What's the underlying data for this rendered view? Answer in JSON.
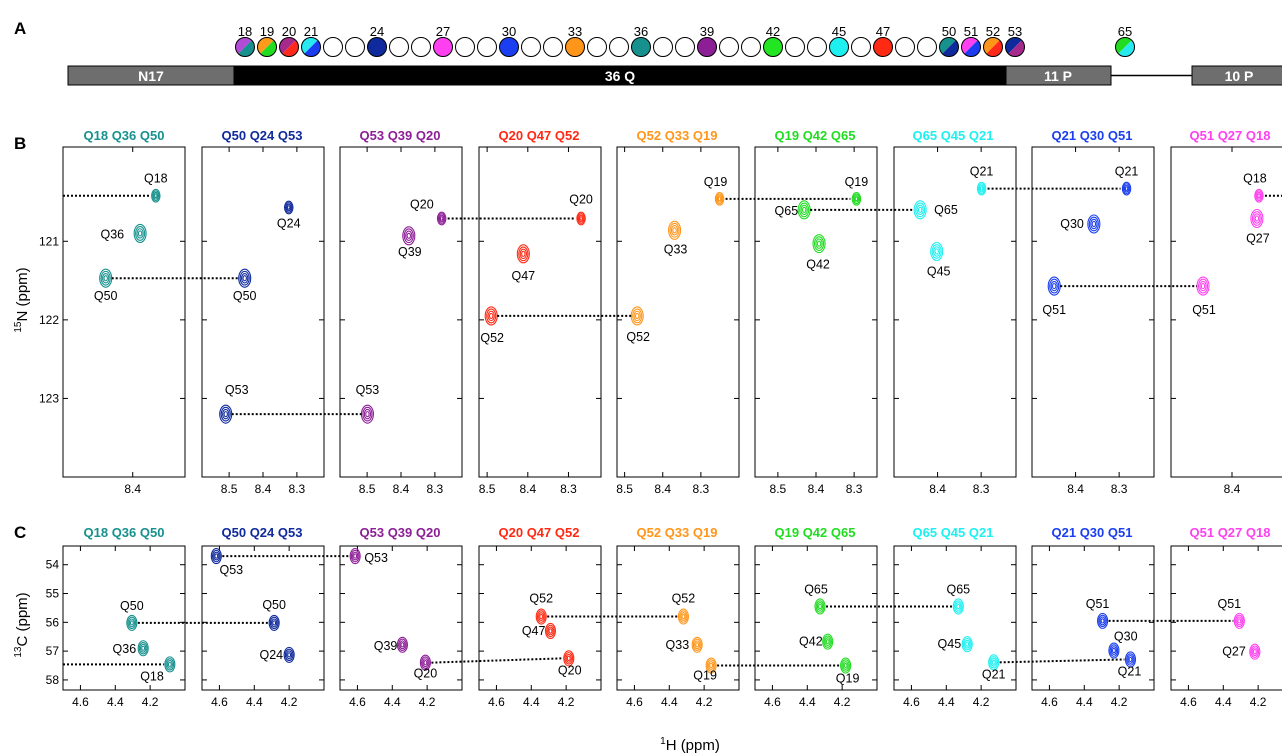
{
  "panel_letters": {
    "a": "A",
    "b": "B",
    "c": "C"
  },
  "schematic": {
    "segments": [
      {
        "label": "N17",
        "color": "#6e6e6e"
      },
      {
        "label": "36 Q",
        "color": "#000000"
      },
      {
        "label": "11 P",
        "color": "#6e6e6e"
      },
      {
        "label": "10 P",
        "color": "#6e6e6e"
      }
    ],
    "residue_numbers": [
      "18",
      "19",
      "20",
      "21",
      "24",
      "27",
      "30",
      "33",
      "36",
      "39",
      "42",
      "45",
      "47",
      "50",
      "51",
      "52",
      "53",
      "65"
    ],
    "residue_colors": {
      "Q18": [
        "#b24bd6",
        "#17918e"
      ],
      "Q19": [
        "#ff9b1a",
        "#22dc22"
      ],
      "Q20": [
        "#a52a8c",
        "#ff2a1a"
      ],
      "Q21": [
        "#28e8f0",
        "#1c3cf0"
      ],
      "Q24": [
        "#0f2a9c"
      ],
      "Q27": [
        "#ff40f0"
      ],
      "Q30": [
        "#1a3ef0"
      ],
      "Q33": [
        "#ff961a"
      ],
      "Q36": [
        "#17918e"
      ],
      "Q39": [
        "#8c1e96"
      ],
      "Q42": [
        "#22e622"
      ],
      "Q45": [
        "#1ef0f0"
      ],
      "Q47": [
        "#ff2a14"
      ],
      "Q50": [
        "#17918e",
        "#0f2a9c"
      ],
      "Q51": [
        "#ff40f0",
        "#1c3cf0"
      ],
      "Q52": [
        "#ff961a",
        "#ff2a1a"
      ],
      "Q53": [
        "#0f2a9c",
        "#a52a8c"
      ],
      "Q65": [
        "#22dc22",
        "#28e8f0"
      ]
    }
  },
  "strip_titles": [
    {
      "text": "Q18 Q36 Q50",
      "color": "#17918e"
    },
    {
      "text": "Q50 Q24 Q53",
      "color": "#0f2a9c"
    },
    {
      "text": "Q53 Q39 Q20",
      "color": "#8c1e96"
    },
    {
      "text": "Q20 Q47 Q52",
      "color": "#ff2a14"
    },
    {
      "text": "Q52 Q33 Q19",
      "color": "#ff961a"
    },
    {
      "text": "Q19 Q42 Q65",
      "color": "#22dc22"
    },
    {
      "text": "Q65 Q45 Q21",
      "color": "#1ef0f0"
    },
    {
      "text": "Q21 Q30 Q51",
      "color": "#1a3ef0"
    },
    {
      "text": "Q51 Q27 Q18",
      "color": "#ff40f0"
    }
  ],
  "chart_data": [
    {
      "panel": "B",
      "type": "scatter",
      "ylabel": "15N (ppm)",
      "ylabel_sup": "15",
      "ylabel_rest": "N (ppm)",
      "ylim": [
        124.0,
        119.8
      ],
      "yticks": [
        121,
        122,
        123
      ],
      "strips": [
        {
          "xlim": [
            8.56,
            8.28
          ],
          "xticks": [
            8.4
          ],
          "peaks": [
            {
              "label": "Q18",
              "x": 8.347,
              "y": 120.42,
              "color": "#17918e"
            },
            {
              "label": "Q36",
              "x": 8.383,
              "y": 120.9,
              "color": "#17918e"
            },
            {
              "label": "Q50",
              "x": 8.462,
              "y": 121.47,
              "color": "#17918e"
            }
          ]
        },
        {
          "xlim": [
            8.58,
            8.22
          ],
          "xticks": [
            8.5,
            8.4,
            8.3
          ],
          "peaks": [
            {
              "label": "Q24",
              "x": 8.324,
              "y": 120.57,
              "color": "#0f2a9c"
            },
            {
              "label": "Q50",
              "x": 8.454,
              "y": 121.47,
              "color": "#0f2a9c"
            },
            {
              "label": "Q53",
              "x": 8.51,
              "y": 123.2,
              "color": "#0f2a9c"
            }
          ]
        },
        {
          "xlim": [
            8.58,
            8.22
          ],
          "xticks": [
            8.5,
            8.4,
            8.3
          ],
          "peaks": [
            {
              "label": "Q20",
              "x": 8.28,
              "y": 120.71,
              "color": "#8c1e96"
            },
            {
              "label": "Q39",
              "x": 8.377,
              "y": 120.93,
              "color": "#8c1e96"
            },
            {
              "label": "Q53",
              "x": 8.499,
              "y": 123.2,
              "color": "#8c1e96"
            }
          ]
        },
        {
          "xlim": [
            8.52,
            8.22
          ],
          "xticks": [
            8.5,
            8.4,
            8.3
          ],
          "peaks": [
            {
              "label": "Q20",
              "x": 8.269,
              "y": 120.71,
              "color": "#ff2a14"
            },
            {
              "label": "Q47",
              "x": 8.411,
              "y": 121.16,
              "color": "#ff2a14"
            },
            {
              "label": "Q52",
              "x": 8.49,
              "y": 121.95,
              "color": "#ff2a14"
            }
          ]
        },
        {
          "xlim": [
            8.52,
            8.2
          ],
          "xticks": [
            8.5,
            8.4,
            8.3
          ],
          "peaks": [
            {
              "label": "Q19",
              "x": 8.251,
              "y": 120.46,
              "color": "#ff961a"
            },
            {
              "label": "Q33",
              "x": 8.369,
              "y": 120.86,
              "color": "#ff961a"
            },
            {
              "label": "Q52",
              "x": 8.467,
              "y": 121.95,
              "color": "#ff961a"
            }
          ]
        },
        {
          "xlim": [
            8.56,
            8.24
          ],
          "xticks": [
            8.5,
            8.4,
            8.3
          ],
          "peaks": [
            {
              "label": "Q19",
              "x": 8.294,
              "y": 120.46,
              "color": "#22dc22"
            },
            {
              "label": "Q65",
              "x": 8.431,
              "y": 120.6,
              "color": "#22dc22"
            },
            {
              "label": "Q42",
              "x": 8.392,
              "y": 121.03,
              "color": "#22dc22"
            }
          ]
        },
        {
          "xlim": [
            8.5,
            8.22
          ],
          "xticks": [
            8.4,
            8.3
          ],
          "peaks": [
            {
              "label": "Q21",
              "x": 8.299,
              "y": 120.33,
              "color": "#1ef0f0"
            },
            {
              "label": "Q65",
              "x": 8.44,
              "y": 120.6,
              "color": "#1ef0f0"
            },
            {
              "label": "Q45",
              "x": 8.402,
              "y": 121.13,
              "color": "#1ef0f0"
            }
          ]
        },
        {
          "xlim": [
            8.5,
            8.22
          ],
          "xticks": [
            8.4,
            8.3
          ],
          "peaks": [
            {
              "label": "Q21",
              "x": 8.283,
              "y": 120.33,
              "color": "#1a3ef0"
            },
            {
              "label": "Q30",
              "x": 8.358,
              "y": 120.78,
              "color": "#1a3ef0"
            },
            {
              "label": "Q51",
              "x": 8.449,
              "y": 121.57,
              "color": "#1a3ef0"
            }
          ]
        },
        {
          "xlim": [
            8.52,
            8.28
          ],
          "xticks": [
            8.4
          ],
          "peaks": [
            {
              "label": "Q18",
              "x": 8.347,
              "y": 120.42,
              "color": "#ff40f0"
            },
            {
              "label": "Q27",
              "x": 8.351,
              "y": 120.71,
              "color": "#ff40f0"
            },
            {
              "label": "Q51",
              "x": 8.457,
              "y": 121.57,
              "color": "#ff40f0"
            }
          ]
        }
      ],
      "connectors": [
        {
          "from": [
            0,
            2
          ],
          "to": [
            1,
            1
          ]
        },
        {
          "from": [
            1,
            2
          ],
          "to": [
            2,
            2
          ]
        },
        {
          "from": [
            2,
            0
          ],
          "to": [
            3,
            0
          ]
        },
        {
          "from": [
            3,
            2
          ],
          "to": [
            4,
            2
          ]
        },
        {
          "from": [
            4,
            0
          ],
          "to": [
            5,
            0
          ]
        },
        {
          "from": [
            5,
            1
          ],
          "to": [
            6,
            1
          ]
        },
        {
          "from": [
            6,
            0
          ],
          "to": [
            7,
            0
          ]
        },
        {
          "from": [
            7,
            2
          ],
          "to": [
            8,
            2
          ]
        },
        {
          "from": [
            8,
            0
          ],
          "to": [
            0,
            0
          ],
          "wrap": true
        }
      ]
    },
    {
      "panel": "C",
      "type": "scatter",
      "xlabel": "1H (ppm)",
      "xlabel_sup": "1",
      "xlabel_rest": "H (ppm)",
      "ylabel": "13C (ppm)",
      "ylabel_sup": "13",
      "ylabel_rest": "C (ppm)",
      "ylim": [
        58.35,
        53.35
      ],
      "yticks": [
        54,
        55,
        56,
        57,
        58
      ],
      "xlim": [
        4.7,
        4.0
      ],
      "xticks": [
        4.6,
        4.4,
        4.2
      ],
      "strips": [
        {
          "peaks": [
            {
              "label": "Q50",
              "x": 4.305,
              "y": 56.02,
              "color": "#17918e"
            },
            {
              "label": "Q36",
              "x": 4.24,
              "y": 56.9,
              "color": "#17918e"
            },
            {
              "label": "Q18",
              "x": 4.087,
              "y": 57.46,
              "color": "#17918e"
            }
          ]
        },
        {
          "peaks": [
            {
              "label": "Q53",
              "x": 4.618,
              "y": 53.7,
              "color": "#0f2a9c"
            },
            {
              "label": "Q50",
              "x": 4.286,
              "y": 56.02,
              "color": "#0f2a9c"
            },
            {
              "label": "Q24",
              "x": 4.2,
              "y": 57.13,
              "color": "#0f2a9c"
            }
          ]
        },
        {
          "peaks": [
            {
              "label": "Q53",
              "x": 4.613,
              "y": 53.7,
              "color": "#8c1e96"
            },
            {
              "label": "Q39",
              "x": 4.342,
              "y": 56.78,
              "color": "#8c1e96"
            },
            {
              "label": "Q20",
              "x": 4.21,
              "y": 57.4,
              "color": "#8c1e96"
            }
          ]
        },
        {
          "peaks": [
            {
              "label": "Q52",
              "x": 4.343,
              "y": 55.8,
              "color": "#ff2a14"
            },
            {
              "label": "Q47",
              "x": 4.29,
              "y": 56.3,
              "color": "#ff2a14"
            },
            {
              "label": "Q20",
              "x": 4.185,
              "y": 57.25,
              "color": "#ff2a14"
            }
          ]
        },
        {
          "peaks": [
            {
              "label": "Q52",
              "x": 4.319,
              "y": 55.8,
              "color": "#ff961a"
            },
            {
              "label": "Q33",
              "x": 4.24,
              "y": 56.78,
              "color": "#ff961a"
            },
            {
              "label": "Q19",
              "x": 4.16,
              "y": 57.5,
              "color": "#ff961a"
            }
          ]
        },
        {
          "peaks": [
            {
              "label": "Q65",
              "x": 4.327,
              "y": 55.45,
              "color": "#22dc22"
            },
            {
              "label": "Q42",
              "x": 4.283,
              "y": 56.67,
              "color": "#22dc22"
            },
            {
              "label": "Q19",
              "x": 4.18,
              "y": 57.5,
              "color": "#22dc22"
            }
          ]
        },
        {
          "peaks": [
            {
              "label": "Q65",
              "x": 4.331,
              "y": 55.45,
              "color": "#1ef0f0"
            },
            {
              "label": "Q45",
              "x": 4.28,
              "y": 56.76,
              "color": "#1ef0f0"
            },
            {
              "label": "Q21",
              "x": 4.128,
              "y": 57.39,
              "color": "#1ef0f0"
            }
          ]
        },
        {
          "peaks": [
            {
              "label": "Q51",
              "x": 4.295,
              "y": 55.95,
              "color": "#1a3ef0"
            },
            {
              "label": "Q30",
              "x": 4.23,
              "y": 56.98,
              "color": "#1a3ef0"
            },
            {
              "label": "Q21",
              "x": 4.135,
              "y": 57.29,
              "color": "#1a3ef0"
            }
          ]
        },
        {
          "peaks": [
            {
              "label": "Q51",
              "x": 4.308,
              "y": 55.95,
              "color": "#ff40f0"
            },
            {
              "label": "Q27",
              "x": 4.219,
              "y": 57.02,
              "color": "#ff40f0"
            },
            {
              "label": "Q18",
              "x": 4.025,
              "y": 57.41,
              "color": "#ff40f0"
            }
          ]
        }
      ],
      "connectors": [
        {
          "from": [
            0,
            0
          ],
          "to": [
            1,
            1
          ]
        },
        {
          "from": [
            1,
            0
          ],
          "to": [
            2,
            0
          ]
        },
        {
          "from": [
            2,
            2
          ],
          "to": [
            3,
            2
          ]
        },
        {
          "from": [
            3,
            0
          ],
          "to": [
            4,
            0
          ]
        },
        {
          "from": [
            4,
            2
          ],
          "to": [
            5,
            2
          ]
        },
        {
          "from": [
            5,
            0
          ],
          "to": [
            6,
            0
          ]
        },
        {
          "from": [
            6,
            2
          ],
          "to": [
            7,
            2
          ]
        },
        {
          "from": [
            7,
            0
          ],
          "to": [
            8,
            0
          ]
        },
        {
          "from": [
            8,
            2
          ],
          "to": [
            0,
            2
          ],
          "wrap": true
        }
      ]
    }
  ]
}
